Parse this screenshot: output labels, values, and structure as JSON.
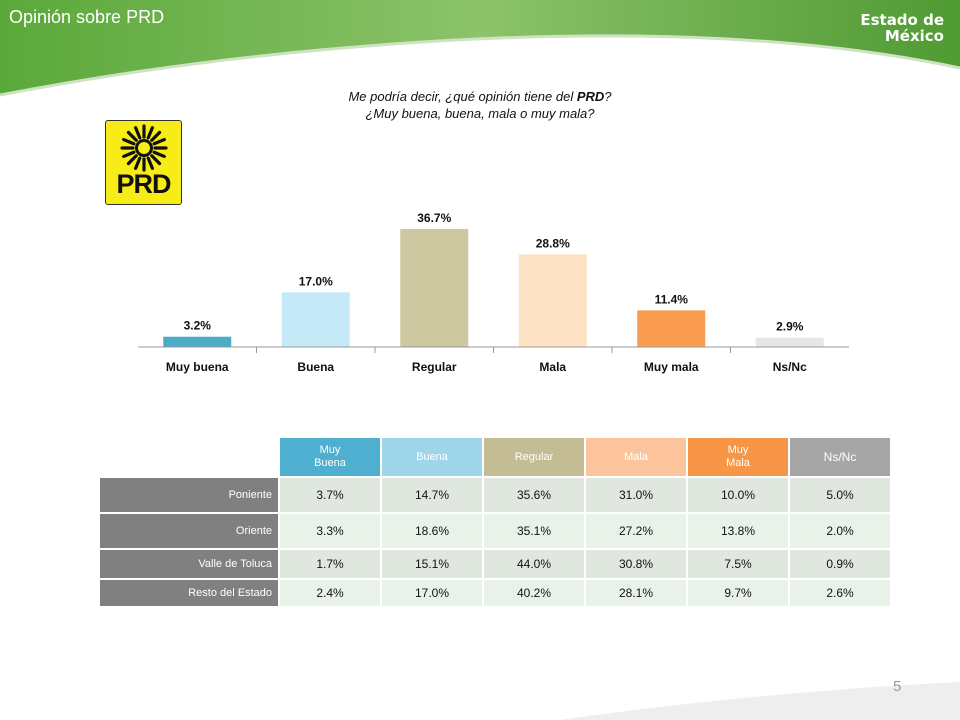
{
  "header": {
    "title": "Opinión sobre PRD",
    "org_line1": "Estado de",
    "org_line2": "México"
  },
  "question": {
    "line1": "Me podría decir, ¿qué opinión tiene del PRD?",
    "line2": "¿Muy buena, buena, mala o muy mala?"
  },
  "logo": {
    "text": "PRD",
    "color": "#f7ec16"
  },
  "chart_data": {
    "type": "bar",
    "categories": [
      "Muy buena",
      "Buena",
      "Regular",
      "Mala",
      "Muy mala",
      "Ns/Nc"
    ],
    "values": [
      3.2,
      17.0,
      36.7,
      28.8,
      11.4,
      2.9
    ],
    "value_labels": [
      "3.2%",
      "17.0%",
      "36.7%",
      "28.8%",
      "11.4%",
      "2.9%"
    ],
    "colors": [
      "#4bacc6",
      "#c6e9f7",
      "#cec8a0",
      "#fde2c4",
      "#fa9c50",
      "#e6e6e6"
    ],
    "ylim": [
      0,
      40
    ],
    "grid": false
  },
  "table": {
    "headers": [
      {
        "line1": "Muy",
        "line2": "Buena",
        "color": "#4eafd0"
      },
      {
        "line1": "Buena",
        "line2": "",
        "color": "#9fd6ea"
      },
      {
        "line1": "Regular",
        "line2": "",
        "color": "#c4bc92"
      },
      {
        "line1": "Mala",
        "line2": "",
        "color": "#fbc49c"
      },
      {
        "line1": "Muy",
        "line2": "Mala",
        "color": "#f79646"
      },
      {
        "line1": "Ns/Nc",
        "line2": "",
        "color": "#a6a6a6"
      }
    ],
    "rows": [
      {
        "label": "Poniente",
        "values": [
          "3.7%",
          "14.7%",
          "35.6%",
          "31.0%",
          "10.0%",
          "5.0%"
        ]
      },
      {
        "label": "Oriente",
        "values": [
          "3.3%",
          "18.6%",
          "35.1%",
          "27.2%",
          "13.8%",
          "2.0%"
        ]
      },
      {
        "label": "Valle de Toluca",
        "values": [
          "1.7%",
          "15.1%",
          "44.0%",
          "30.8%",
          "7.5%",
          "0.9%"
        ]
      },
      {
        "label": "Resto del Estado",
        "values": [
          "2.4%",
          "17.0%",
          "40.2%",
          "28.1%",
          "9.7%",
          "2.6%"
        ]
      }
    ]
  },
  "page_number": "5"
}
